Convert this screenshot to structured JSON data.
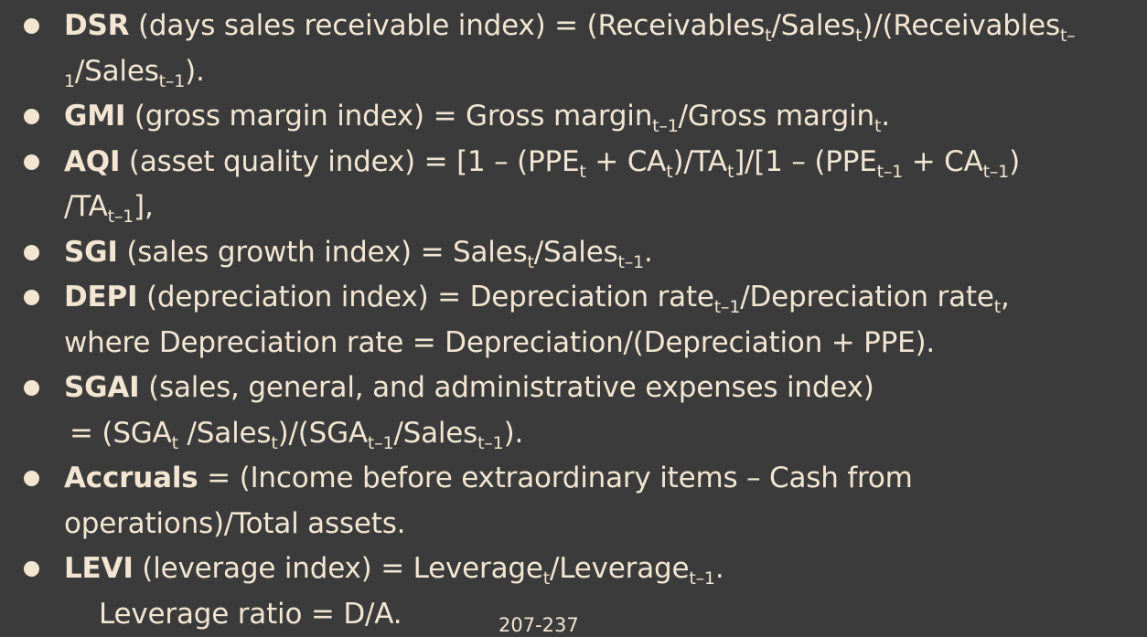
{
  "slide": {
    "page_number": "207-237",
    "items": [
      {
        "term": "DSR",
        "line1_desc": " (days sales receivable index) = (Receivables",
        "line1_sub1": "t",
        "line1_mid1": "/Sales",
        "line1_sub2": "t",
        "line1_mid2": ")/(Receivables",
        "line1_sub3": "t–",
        "line2_sub": "1",
        "line2_mid": "/Sales",
        "line2_sub2": "t–1",
        "line2_end": ")."
      },
      {
        "term": "GMI",
        "desc": " (gross margin index) = Gross margin",
        "sub1": "t–1",
        "mid": "/Gross margin",
        "sub2": "t",
        "end": "."
      },
      {
        "term": "AQI",
        "line1_desc": " (asset quality index) = [1 – (PPE",
        "s1": "t",
        "m1": " + CA",
        "s2": "t",
        "m2": ")/TA",
        "s3": "t",
        "m3": "]/[1 – (PPE",
        "s4": "t–1",
        "m4": " + CA",
        "s5": "t–1",
        "m5": ")",
        "line2_start": "/TA",
        "line2_sub": "t–1",
        "line2_end": "],"
      },
      {
        "term": "SGI",
        "desc": " (sales growth index) = Sales",
        "sub1": "t",
        "mid": "/Sales",
        "sub2": "t–1",
        "end": "."
      },
      {
        "term": "DEPI",
        "line1_desc": " (depreciation index) = Depreciation rate",
        "sub1": "t–1",
        "mid": "/Depreciation rate",
        "sub2": "t",
        "end": ",",
        "line2": "where Depreciation rate = Depreciation/(Depreciation + PPE)."
      },
      {
        "term": "SGAI",
        "line1_desc": " (sales, general, and administrative expenses index)",
        "l2a": "= (SGA",
        "l2s1": "t",
        "l2b": " /Sales",
        "l2s2": "t",
        "l2c": ")/(SGA",
        "l2s3": "t–1",
        "l2d": "/Sales",
        "l2s4": "t–1",
        "l2e": ")."
      },
      {
        "term": "Accruals",
        "line1_desc": " = (Income before extraordinary items – Cash from",
        "line2": "operations)/Total assets."
      },
      {
        "term": "LEVI",
        "desc": " (leverage index) = Leverage",
        "sub1": "t",
        "mid": "/Leverage",
        "sub2": "t–1",
        "end": ".",
        "line2": "Leverage ratio = D/A."
      }
    ]
  }
}
